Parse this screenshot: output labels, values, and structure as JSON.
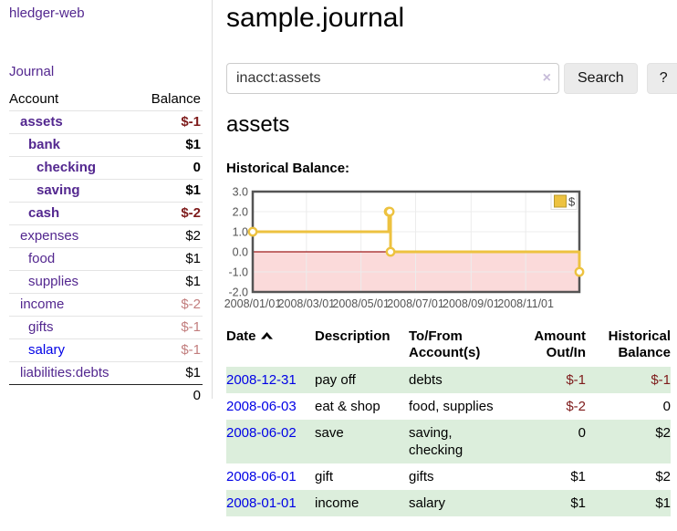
{
  "app": {
    "brand": "hledger-web",
    "nav": {
      "journal": "Journal"
    }
  },
  "colors": {
    "link_purple": "#53278f",
    "link_blue": "#0000e6",
    "negative": "#7e1b1b",
    "negative_faded": "#c27e7e",
    "row_stripe_green": "#dceedc",
    "chart_line_gold": "#edc240"
  },
  "sidebar": {
    "header": {
      "account": "Account",
      "balance": "Balance"
    },
    "accounts": [
      {
        "name": "assets",
        "balance": "$-1",
        "indent": 1,
        "bold": true,
        "balance_style": "negative"
      },
      {
        "name": "bank",
        "balance": "$1",
        "indent": 2,
        "bold": true,
        "balance_style": "normal"
      },
      {
        "name": "checking",
        "balance": "0",
        "indent": 3,
        "bold": true,
        "balance_style": "normal"
      },
      {
        "name": "saving",
        "balance": "$1",
        "indent": 3,
        "bold": true,
        "balance_style": "normal"
      },
      {
        "name": "cash",
        "balance": "$-2",
        "indent": 2,
        "bold": true,
        "balance_style": "negative"
      },
      {
        "name": "expenses",
        "balance": "$2",
        "indent": 1,
        "bold": false,
        "balance_style": "normal"
      },
      {
        "name": "food",
        "balance": "$1",
        "indent": 2,
        "bold": false,
        "balance_style": "normal"
      },
      {
        "name": "supplies",
        "balance": "$1",
        "indent": 2,
        "bold": false,
        "balance_style": "normal"
      },
      {
        "name": "income",
        "balance": "$-2",
        "indent": 1,
        "bold": false,
        "balance_style": "negative-faded"
      },
      {
        "name": "gifts",
        "balance": "$-1",
        "indent": 2,
        "bold": false,
        "balance_style": "negative-faded"
      },
      {
        "name": "salary",
        "balance": "$-1",
        "indent": 2,
        "bold": false,
        "balance_style": "negative-faded",
        "link_style": "blue"
      },
      {
        "name": "liabilities:debts",
        "balance": "$1",
        "indent": 1,
        "bold": false,
        "balance_style": "normal"
      }
    ],
    "total": "0"
  },
  "header": {
    "title": "sample.journal"
  },
  "search": {
    "query": "inacct:assets",
    "clear_icon": "×",
    "button_label": "Search",
    "help_label": "?"
  },
  "account_page": {
    "heading": "assets",
    "chart_label": "Historical Balance:"
  },
  "chart_data": {
    "type": "line",
    "step": true,
    "title": "Historical Balance",
    "legend": {
      "label": "$",
      "position": "top-right"
    },
    "x_domain": [
      "2008-01-01",
      "2008-12-31"
    ],
    "ylim": [
      -2,
      3
    ],
    "y_ticks": [
      "3.0",
      "2.0",
      "1.0",
      "0.0",
      "-1.0",
      "-2.0"
    ],
    "x_ticks": [
      {
        "date": "2008-01-01",
        "label": "2008/01/01"
      },
      {
        "date": "2008-03-01",
        "label": "2008/03/01"
      },
      {
        "date": "2008-05-01",
        "label": "2008/05/01"
      },
      {
        "date": "2008-07-01",
        "label": "2008/07/01"
      },
      {
        "date": "2008-09-01",
        "label": "2008/09/01"
      },
      {
        "date": "2008-11-01",
        "label": "2008/11/01"
      }
    ],
    "grid": true,
    "series": [
      {
        "name": "$",
        "color": "#edc240",
        "points": [
          [
            "2008-01-01",
            1
          ],
          [
            "2008-06-01",
            2
          ],
          [
            "2008-06-02",
            2
          ],
          [
            "2008-06-03",
            0
          ],
          [
            "2008-12-31",
            -1
          ]
        ]
      }
    ],
    "negative_region_color": "#fbdada",
    "zero_line_color": "#9e1a1a",
    "border_color": "#545454",
    "gridline_color": "#ececec",
    "tick_label_color": "#545454"
  },
  "register": {
    "sort": {
      "column": "Date",
      "direction": "ascending"
    },
    "columns": [
      {
        "label": "Date"
      },
      {
        "label": "Description"
      },
      {
        "label": "To/From Account(s)"
      },
      {
        "label": "Amount Out/In"
      },
      {
        "label": "Historical Balance"
      }
    ],
    "rows": [
      {
        "date": "2008-12-31",
        "description": "pay off",
        "accounts": "debts",
        "amount": "$-1",
        "balance": "$-1"
      },
      {
        "date": "2008-06-03",
        "description": "eat & shop",
        "accounts": "food, supplies",
        "amount": "$-2",
        "balance": "0"
      },
      {
        "date": "2008-06-02",
        "description": "save",
        "accounts": "saving, checking",
        "amount": "0",
        "balance": "$2"
      },
      {
        "date": "2008-06-01",
        "description": "gift",
        "accounts": "gifts",
        "amount": "$1",
        "balance": "$2"
      },
      {
        "date": "2008-01-01",
        "description": "income",
        "accounts": "salary",
        "amount": "$1",
        "balance": "$1"
      }
    ]
  }
}
